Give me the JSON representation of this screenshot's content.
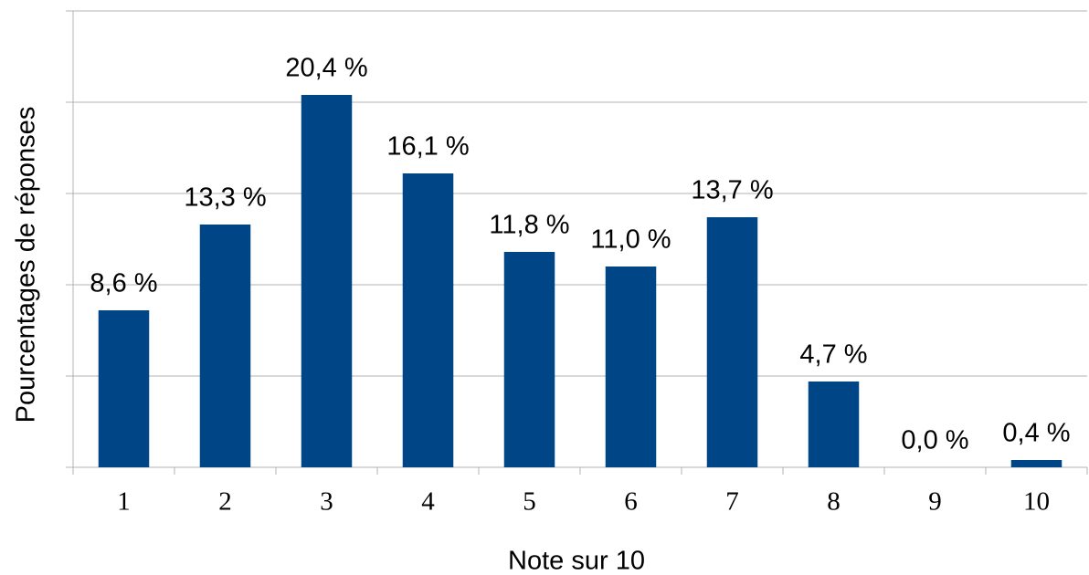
{
  "chart_data": {
    "type": "bar",
    "x_label": "Note sur 10",
    "y_label": "Pourcentages de réponses",
    "categories": [
      "1",
      "2",
      "3",
      "4",
      "5",
      "6",
      "7",
      "8",
      "9",
      "10"
    ],
    "values": [
      8.6,
      13.3,
      20.4,
      16.1,
      11.8,
      11.0,
      13.7,
      4.7,
      0.0,
      0.4
    ],
    "value_labels": [
      "8,6 %",
      "13,3 %",
      "20,4 %",
      "16,1 %",
      "11,8 %",
      "11,0 %",
      "13,7 %",
      "4,7 %",
      "0,0 %",
      "0,4 %"
    ],
    "color": "#004586",
    "ylim": [
      0,
      25
    ],
    "yticks": [
      0,
      5,
      10,
      15,
      20,
      25
    ],
    "grid": true
  }
}
